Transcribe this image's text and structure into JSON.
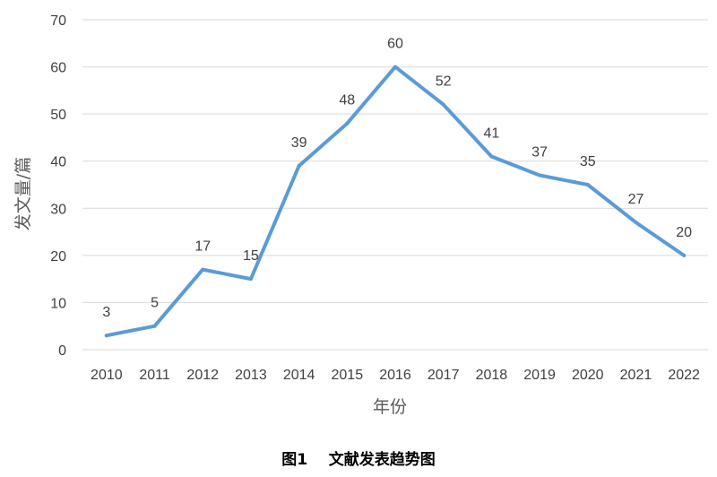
{
  "caption": "图1    文献发表趋势图",
  "colors": {
    "line": "#5B9BD5",
    "grid": "#D9D9D9",
    "text": "#404040",
    "axis_title": "#595959"
  },
  "chart_data": {
    "type": "line",
    "title": "",
    "xlabel": "年份",
    "ylabel": "发文量/篇",
    "x": [
      "2010",
      "2011",
      "2012",
      "2013",
      "2014",
      "2015",
      "2016",
      "2017",
      "2018",
      "2019",
      "2020",
      "2021",
      "2022"
    ],
    "values": [
      3,
      5,
      17,
      15,
      39,
      48,
      60,
      52,
      41,
      37,
      35,
      27,
      20
    ],
    "ylim": [
      0,
      70
    ],
    "yticks": [
      "0",
      "10",
      "20",
      "30",
      "40",
      "50",
      "60",
      "70"
    ],
    "grid": true,
    "data_labels": true
  }
}
